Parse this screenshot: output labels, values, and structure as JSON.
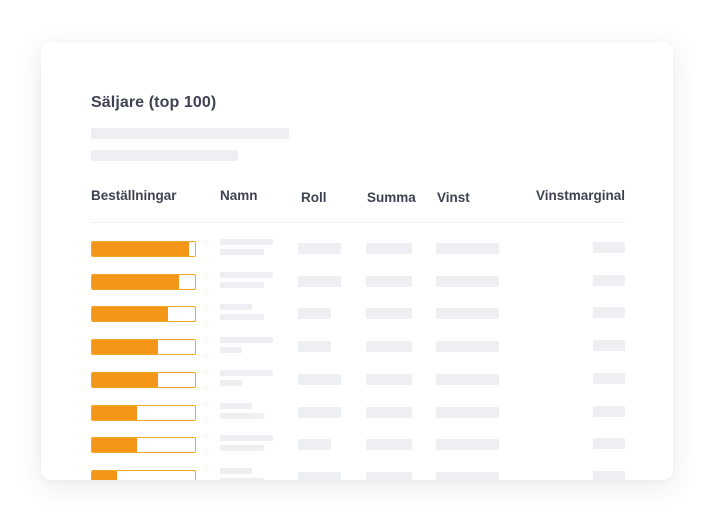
{
  "title": "Säljare (top 100)",
  "columns": {
    "orders": "Beställningar",
    "name": "Namn",
    "role": "Roll",
    "sum": "Summa",
    "profit": "Vinst",
    "margin": "Vinstmarginal"
  },
  "colors": {
    "bar_fill": "#f39519",
    "bar_border": "#f5a623",
    "skeleton": "#eeeff2",
    "text": "#3d4352"
  },
  "rows": [
    {
      "orders_fill": 0.94
    },
    {
      "orders_fill": 0.84
    },
    {
      "orders_fill": 0.74
    },
    {
      "orders_fill": 0.64
    },
    {
      "orders_fill": 0.64
    },
    {
      "orders_fill": 0.44
    },
    {
      "orders_fill": 0.44
    },
    {
      "orders_fill": 0.24
    }
  ]
}
